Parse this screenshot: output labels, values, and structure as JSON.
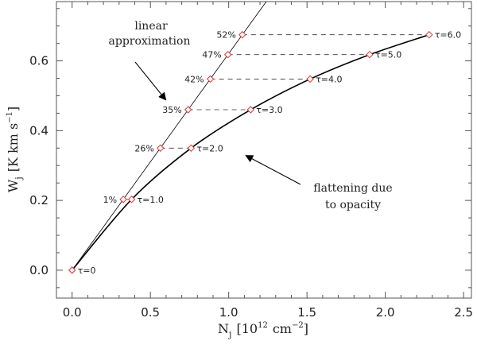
{
  "chart_data": {
    "type": "line",
    "title": "",
    "xlabel": "N",
    "xlabel_sub": "j",
    "xlabel_units": "[10",
    "xlabel_units_exp": "12",
    "xlabel_units_tail": "cm",
    "xlabel_units_tail_exp": "−2",
    "xlabel_close": "]",
    "ylabel": "W",
    "ylabel_sub": "j",
    "ylabel_units": "[K km s",
    "ylabel_units_exp": "−1",
    "ylabel_close": "]",
    "xlim": [
      -0.1,
      2.55
    ],
    "ylim": [
      -0.08,
      0.77
    ],
    "xticks": [
      0.0,
      0.5,
      1.0,
      1.5,
      2.0,
      2.5
    ],
    "xtick_labels": [
      "0.0",
      "0.5",
      "1.0",
      "1.5",
      "2.0",
      "2.5"
    ],
    "yticks": [
      0.0,
      0.2,
      0.4,
      0.6
    ],
    "ytick_labels": [
      "0.0",
      "0.2",
      "0.4",
      "0.6"
    ],
    "grid": false,
    "linear_approximation": {
      "x": [
        0.0,
        1.24
      ],
      "y": [
        0.0,
        0.77
      ]
    },
    "curve_of_growth": {
      "tau": [
        "τ=0",
        "τ=1.0",
        "τ=2.0",
        "τ=3.0",
        "τ=4.0",
        "τ=5.0",
        "τ=6.0"
      ],
      "x": [
        0.0,
        0.38,
        0.76,
        1.14,
        1.52,
        1.9,
        2.28
      ],
      "y": [
        0.0,
        0.203,
        0.35,
        0.46,
        0.548,
        0.618,
        0.675
      ]
    },
    "optically_thin_points": {
      "labels": [
        "1%",
        "26%",
        "35%",
        "42%",
        "47%",
        "52%"
      ],
      "x": [
        0.327,
        0.564,
        0.741,
        0.883,
        0.995,
        1.087
      ],
      "y": [
        0.203,
        0.35,
        0.46,
        0.548,
        0.618,
        0.675
      ]
    },
    "annotations": {
      "linear_line1": "linear",
      "linear_line2": "approximation",
      "flat_line1": "flattening due",
      "flat_line2": "to opacity"
    },
    "colors": {
      "marker": "#e0302a",
      "curve": "#000000",
      "axis": "#555555"
    }
  }
}
